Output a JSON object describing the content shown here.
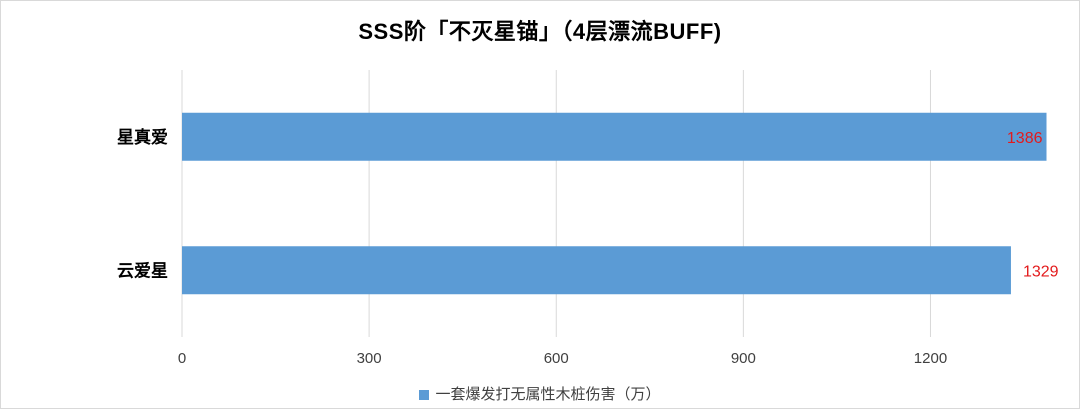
{
  "colors": {
    "bar": "#5b9bd5",
    "data_label": "#e31a1c",
    "grid": "#d9d9d9",
    "axis_text": "#404040",
    "category_text": "#000000"
  },
  "chart_data": {
    "type": "bar",
    "orientation": "horizontal",
    "title": "SSS阶「不灭星锚」（4层漂流BUFF)",
    "categories": [
      "星真爱",
      "云爱星"
    ],
    "series": [
      {
        "name": "一套爆发打无属性木桩伤害（万）",
        "values": [
          1386,
          1329
        ]
      }
    ],
    "data_labels": [
      "1386",
      "1329"
    ],
    "xlim": [
      0,
      1390
    ],
    "xticks": [
      0,
      300,
      600,
      900,
      1200
    ],
    "xtick_labels": [
      "0",
      "300",
      "600",
      "900",
      "1200"
    ],
    "grid": true,
    "legend_position": "bottom"
  }
}
